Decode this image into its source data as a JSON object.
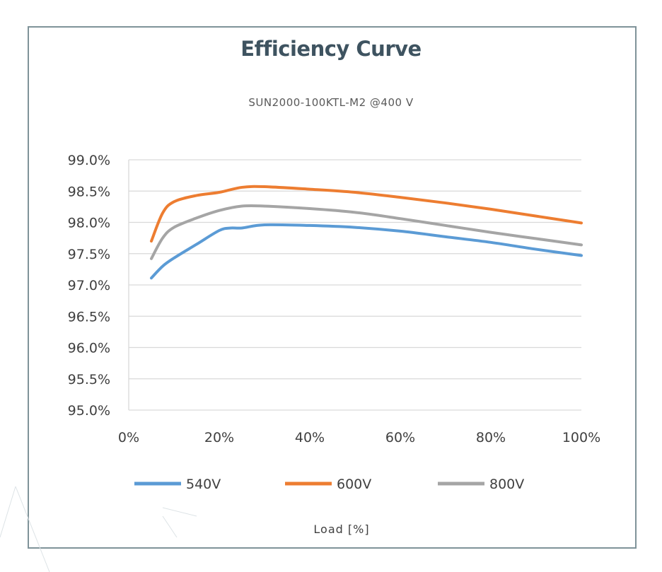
{
  "chart_data": {
    "type": "line",
    "title": "Efficiency Curve",
    "subtitle": "SUN2000-100KTL-M2 @400  V",
    "xlabel": "Load [%]",
    "ylabel": "",
    "xlim": [
      0,
      100
    ],
    "ylim": [
      95.0,
      99.0
    ],
    "x_ticks": [
      "0%",
      "20%",
      "40%",
      "60%",
      "80%",
      "100%"
    ],
    "y_ticks": [
      "99.0%",
      "98.5%",
      "98.0%",
      "97.5%",
      "97.0%",
      "96.5%",
      "96.0%",
      "95.5%",
      "95.0%"
    ],
    "grid": "horizontal",
    "legend_position": "bottom",
    "series": [
      {
        "name": "540V",
        "color": "#5b9bd5",
        "x": [
          5,
          7.5,
          10,
          15,
          20,
          22.5,
          25,
          30,
          40,
          50,
          60,
          70,
          80,
          90,
          100
        ],
        "y": [
          97.11,
          97.3,
          97.43,
          97.65,
          97.87,
          97.91,
          97.91,
          97.96,
          97.95,
          97.92,
          97.86,
          97.77,
          97.68,
          97.57,
          97.47
        ]
      },
      {
        "name": "600V",
        "color": "#ed7d31",
        "x": [
          5,
          7.5,
          10,
          15,
          20,
          25,
          30,
          40,
          50,
          60,
          70,
          80,
          90,
          100
        ],
        "y": [
          97.7,
          98.15,
          98.33,
          98.43,
          98.48,
          98.56,
          98.57,
          98.53,
          98.48,
          98.4,
          98.31,
          98.21,
          98.1,
          97.99
        ]
      },
      {
        "name": "800V",
        "color": "#a5a5a5",
        "x": [
          5,
          7.5,
          10,
          15,
          20,
          25,
          30,
          40,
          50,
          60,
          70,
          80,
          90,
          100
        ],
        "y": [
          97.42,
          97.75,
          97.92,
          98.07,
          98.19,
          98.26,
          98.26,
          98.22,
          98.16,
          98.06,
          97.95,
          97.84,
          97.74,
          97.64
        ]
      }
    ]
  }
}
